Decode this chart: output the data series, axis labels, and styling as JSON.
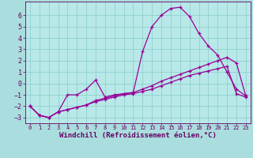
{
  "x": [
    0,
    1,
    2,
    3,
    4,
    5,
    6,
    7,
    8,
    9,
    10,
    11,
    12,
    13,
    14,
    15,
    16,
    17,
    18,
    19,
    20,
    21,
    22,
    23
  ],
  "line1": [
    -2.0,
    -2.8,
    -3.0,
    -2.5,
    -1.0,
    -1.0,
    -0.5,
    0.3,
    -1.2,
    -1.0,
    -0.9,
    -0.8,
    2.8,
    5.0,
    6.0,
    6.6,
    6.7,
    5.9,
    4.4,
    3.3,
    2.5,
    1.0,
    -0.5,
    -1.1
  ],
  "line2": [
    -2.0,
    -2.8,
    -3.0,
    -2.5,
    -2.3,
    -2.1,
    -1.9,
    -1.5,
    -1.3,
    -1.1,
    -0.9,
    -0.8,
    -0.5,
    -0.2,
    0.2,
    0.5,
    0.8,
    1.1,
    1.4,
    1.7,
    2.0,
    2.3,
    1.8,
    -1.1
  ],
  "line3": [
    -2.0,
    -2.8,
    -3.0,
    -2.5,
    -2.3,
    -2.1,
    -1.9,
    -1.6,
    -1.4,
    -1.2,
    -1.0,
    -0.9,
    -0.7,
    -0.5,
    -0.2,
    0.1,
    0.4,
    0.7,
    0.9,
    1.1,
    1.3,
    1.5,
    -0.9,
    -1.2
  ],
  "line_color": "#990099",
  "bg_color": "#aadddd",
  "plot_bg_color": "#b8e8e8",
  "grid_color": "#88cccc",
  "xlabel": "Windchill (Refroidissement éolien,°C)",
  "ylim": [
    -3.5,
    7.2
  ],
  "xlim": [
    -0.5,
    23.5
  ],
  "yticks": [
    -3,
    -2,
    -1,
    0,
    1,
    2,
    3,
    4,
    5,
    6
  ],
  "xticks": [
    0,
    1,
    2,
    3,
    4,
    5,
    6,
    7,
    8,
    9,
    10,
    11,
    12,
    13,
    14,
    15,
    16,
    17,
    18,
    19,
    20,
    21,
    22,
    23
  ],
  "marker": "+",
  "markersize": 3.5,
  "linewidth": 0.9,
  "font_color": "#660066",
  "tick_color": "#660066",
  "xlabel_fontsize": 6.5,
  "ytick_fontsize": 6,
  "xtick_fontsize": 5.0
}
